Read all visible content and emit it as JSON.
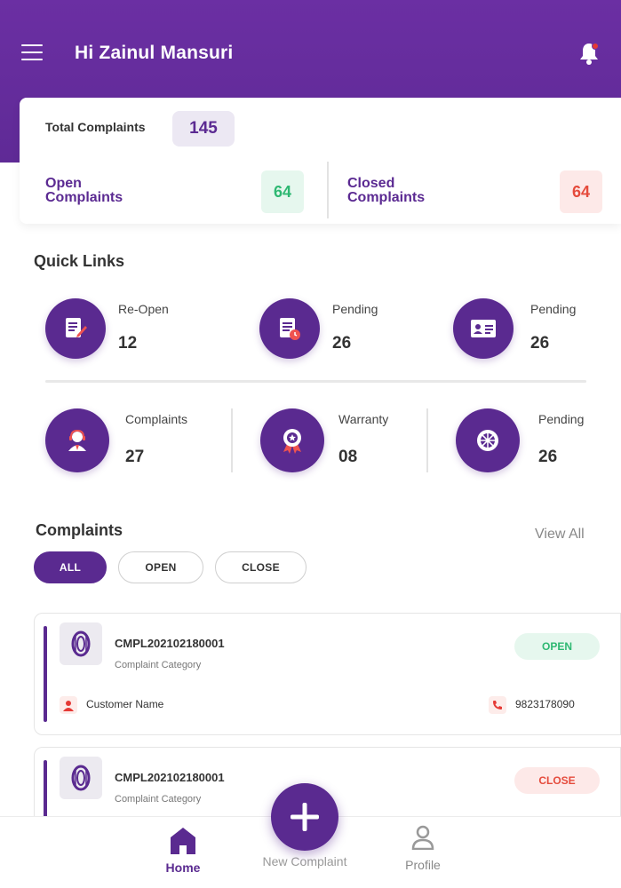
{
  "header": {
    "greeting": "Hi Zainul Mansuri",
    "menu_icon": "hamburger-menu-icon",
    "notification_icon": "bell-icon",
    "background_color": "#6b2fa3"
  },
  "summary": {
    "total_label": "Total Complaints",
    "total_value": "145",
    "open_label": "Open Complaints",
    "open_value": "64",
    "closed_label": "Closed Complaints",
    "closed_value": "64",
    "open_color": "#2eb872",
    "closed_color": "#e54b3c"
  },
  "quick_links": {
    "title": "Quick Links",
    "items": [
      {
        "label": "Re-Open",
        "value": "12",
        "icon": "edit-document-icon"
      },
      {
        "label": "Pending",
        "value": "26",
        "icon": "document-clock-icon"
      },
      {
        "label": "Pending",
        "value": "26",
        "icon": "id-card-icon"
      },
      {
        "label": "Complaints",
        "value": "27",
        "icon": "support-agent-icon"
      },
      {
        "label": "Warranty",
        "value": "08",
        "icon": "award-badge-icon"
      },
      {
        "label": "Pending",
        "value": "26",
        "icon": "wheel-icon"
      }
    ]
  },
  "complaints": {
    "title": "Complaints",
    "view_all": "View All",
    "filters": [
      "ALL",
      "OPEN",
      "CLOSE"
    ],
    "active_filter": "ALL",
    "items": [
      {
        "id": "CMPL202102180001",
        "category": "Complaint Category",
        "status": "OPEN",
        "customer": "Customer Name",
        "phone": "9823178090",
        "thumb_icon": "tyre-icon"
      },
      {
        "id": "CMPL202102180001",
        "category": "Complaint Category",
        "status": "CLOSE",
        "customer": "",
        "phone": "",
        "thumb_icon": "tyre-icon"
      }
    ]
  },
  "bottom_nav": {
    "home": "Home",
    "new_complaint": "New Complaint",
    "profile": "Profile",
    "fab_icon": "plus-icon",
    "accent_color": "#5a2a90"
  }
}
